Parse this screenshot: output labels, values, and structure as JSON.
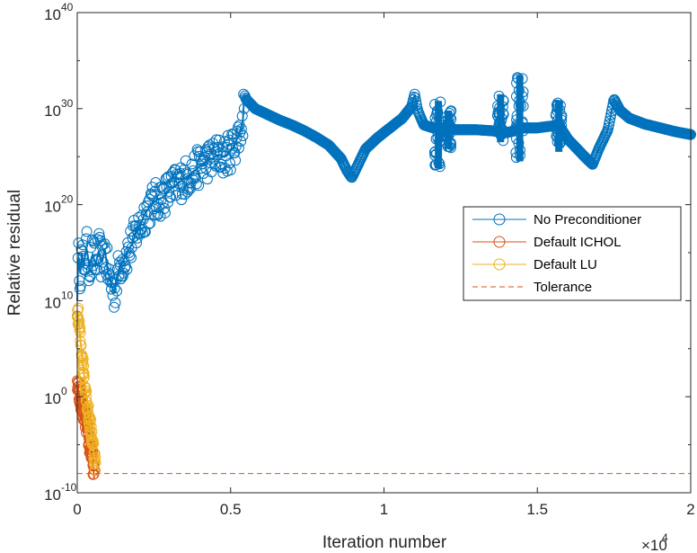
{
  "chart_data": {
    "type": "line",
    "title": "",
    "xlabel": "Iteration number",
    "ylabel": "Relative residual",
    "x_multiplier": "×10",
    "x_multiplier_exp": "4",
    "xlim": [
      0,
      20000
    ],
    "ylim_log10": [
      -10,
      40
    ],
    "yscale": "log",
    "grid": false,
    "legend_position": "right",
    "x_ticks": [
      {
        "value": 0,
        "label": "0"
      },
      {
        "value": 5000,
        "label": "0.5"
      },
      {
        "value": 10000,
        "label": "1"
      },
      {
        "value": 15000,
        "label": "1.5"
      },
      {
        "value": 20000,
        "label": "2"
      }
    ],
    "y_ticks": [
      {
        "log": -10,
        "base": "10",
        "exp": "-10"
      },
      {
        "log": 0,
        "base": "10",
        "exp": "0"
      },
      {
        "log": 10,
        "base": "10",
        "exp": "10"
      },
      {
        "log": 20,
        "base": "10",
        "exp": "20"
      },
      {
        "log": 30,
        "base": "10",
        "exp": "30"
      },
      {
        "log": 40,
        "base": "10",
        "exp": "40"
      }
    ],
    "series": [
      {
        "name": "No Preconditioner",
        "color": "#0072BD",
        "marker": "circle",
        "points_log10": [
          [
            0,
            10.0
          ],
          [
            20,
            13.0
          ],
          [
            50,
            14.5
          ],
          [
            100,
            12.8
          ],
          [
            150,
            15.0
          ],
          [
            200,
            13.5
          ],
          [
            300,
            15.5
          ],
          [
            400,
            13.5
          ],
          [
            500,
            14.8
          ],
          [
            600,
            13.8
          ],
          [
            700,
            15.2
          ],
          [
            800,
            14.0
          ],
          [
            900,
            15.3
          ],
          [
            1000,
            13.0
          ],
          [
            1100,
            11.8
          ],
          [
            1200,
            10.8
          ],
          [
            1300,
            12.5
          ],
          [
            1400,
            13.8
          ],
          [
            1500,
            14.2
          ],
          [
            1600,
            14.8
          ],
          [
            1700,
            15.5
          ],
          [
            1800,
            16.0
          ],
          [
            1900,
            17.0
          ],
          [
            2000,
            17.5
          ],
          [
            2200,
            19.0
          ],
          [
            2400,
            20.0
          ],
          [
            2600,
            20.5
          ],
          [
            2800,
            20.8
          ],
          [
            3000,
            21.5
          ],
          [
            3200,
            22.0
          ],
          [
            3400,
            22.5
          ],
          [
            3600,
            23.0
          ],
          [
            3800,
            23.5
          ],
          [
            4000,
            24.0
          ],
          [
            4200,
            24.5
          ],
          [
            4400,
            24.8
          ],
          [
            4600,
            25.2
          ],
          [
            4800,
            25.0
          ],
          [
            5000,
            25.6
          ],
          [
            5100,
            26.0
          ],
          [
            5200,
            26.8
          ],
          [
            5300,
            27.5
          ],
          [
            5400,
            28.8
          ],
          [
            5450,
            31.5
          ],
          [
            5500,
            31.0
          ],
          [
            5800,
            30.0
          ],
          [
            6200,
            29.4
          ],
          [
            6600,
            28.8
          ],
          [
            7000,
            28.3
          ],
          [
            7400,
            27.7
          ],
          [
            7800,
            27.0
          ],
          [
            8200,
            26.2
          ],
          [
            8600,
            24.8
          ],
          [
            8800,
            23.5
          ],
          [
            8950,
            22.8
          ],
          [
            9100,
            23.8
          ],
          [
            9400,
            25.8
          ],
          [
            9800,
            27.0
          ],
          [
            10200,
            28.0
          ],
          [
            10600,
            29.0
          ],
          [
            10900,
            30.2
          ],
          [
            11000,
            31.5
          ],
          [
            11100,
            29.8
          ],
          [
            11300,
            28.3
          ],
          [
            11600,
            28.0
          ],
          [
            12000,
            27.8
          ],
          [
            12500,
            27.8
          ],
          [
            13000,
            27.8
          ],
          [
            13500,
            27.7
          ],
          [
            14000,
            27.5
          ],
          [
            14400,
            27.8
          ],
          [
            14500,
            28.0
          ],
          [
            15000,
            28.0
          ],
          [
            15500,
            28.2
          ],
          [
            15700,
            28.2
          ],
          [
            15800,
            27.8
          ],
          [
            16000,
            26.8
          ],
          [
            16300,
            25.8
          ],
          [
            16600,
            24.8
          ],
          [
            16800,
            24.2
          ],
          [
            17000,
            25.8
          ],
          [
            17300,
            27.8
          ],
          [
            17500,
            31.0
          ],
          [
            17700,
            29.8
          ],
          [
            18000,
            29.0
          ],
          [
            18500,
            28.4
          ],
          [
            19000,
            28.0
          ],
          [
            19500,
            27.6
          ],
          [
            20000,
            27.3
          ]
        ],
        "spike_bands": [
          {
            "x_start": 0,
            "x_end": 5450,
            "low": [
              10.0,
              8.8
            ],
            "note": "dense noisy band"
          },
          {
            "x_start": 11650,
            "x_end": 11900,
            "low": 23.8,
            "high": 30.8
          },
          {
            "x_start": 12000,
            "x_end": 12200,
            "low": 25.8,
            "high": 29.8
          },
          {
            "x_start": 13700,
            "x_end": 13900,
            "low": 26.5,
            "high": 31.5
          },
          {
            "x_start": 14300,
            "x_end": 14550,
            "low": 24.5,
            "high": 33.5
          },
          {
            "x_start": 15600,
            "x_end": 15800,
            "low": 25.5,
            "high": 30.8
          }
        ]
      },
      {
        "name": "Default ICHOL",
        "color": "#D95319",
        "marker": "circle",
        "points_log10": [
          [
            0,
            1.2
          ],
          [
            50,
            0.5
          ],
          [
            100,
            -0.5
          ],
          [
            200,
            -1.5
          ],
          [
            300,
            -3.0
          ],
          [
            400,
            -5.0
          ],
          [
            500,
            -6.5
          ],
          [
            550,
            -8.5
          ]
        ]
      },
      {
        "name": "Default LU",
        "color": "#EDB120",
        "marker": "circle",
        "points_log10": [
          [
            0,
            9.0
          ],
          [
            50,
            8.0
          ],
          [
            100,
            6.0
          ],
          [
            150,
            4.5
          ],
          [
            200,
            3.0
          ],
          [
            250,
            1.5
          ],
          [
            300,
            0.0
          ],
          [
            350,
            -1.5
          ],
          [
            400,
            -2.5
          ],
          [
            450,
            -3.5
          ],
          [
            500,
            -4.5
          ],
          [
            550,
            -6.0
          ],
          [
            600,
            -7.0
          ]
        ]
      },
      {
        "name": "Tolerance",
        "color": "#D95319",
        "style": "dashed",
        "value_log10": -8
      }
    ]
  }
}
